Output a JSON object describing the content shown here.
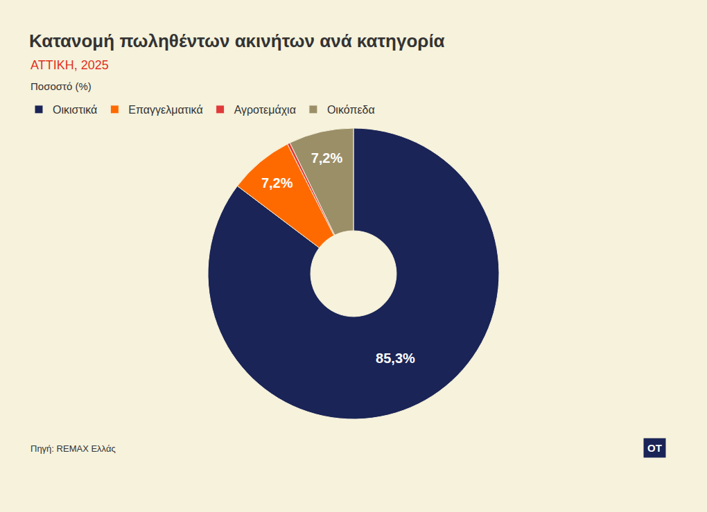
{
  "chart_data": {
    "type": "pie",
    "title": "Κατανομή πωληθέντων ακινήτων ανά κατηγορία",
    "subtitle": "ΑΤΤΙΚΗ, 2025",
    "unit_label": "Ποσοστό (%)",
    "source": "Πηγή: REMAX Ελλάς",
    "logo": "ΟΤ",
    "categories": [
      "Οικιστικά",
      "Επαγγελματικά",
      "Αγροτεμάχια",
      "Οικόπεδα"
    ],
    "values": [
      85.3,
      7.2,
      0.3,
      7.2
    ],
    "value_labels": [
      "85,3%",
      "7,2%",
      null,
      "7,2%"
    ],
    "colors": [
      "#1a2456",
      "#ff6a00",
      "#e03a3a",
      "#9b8f68"
    ],
    "data_labels": true,
    "legend": "top-left"
  }
}
